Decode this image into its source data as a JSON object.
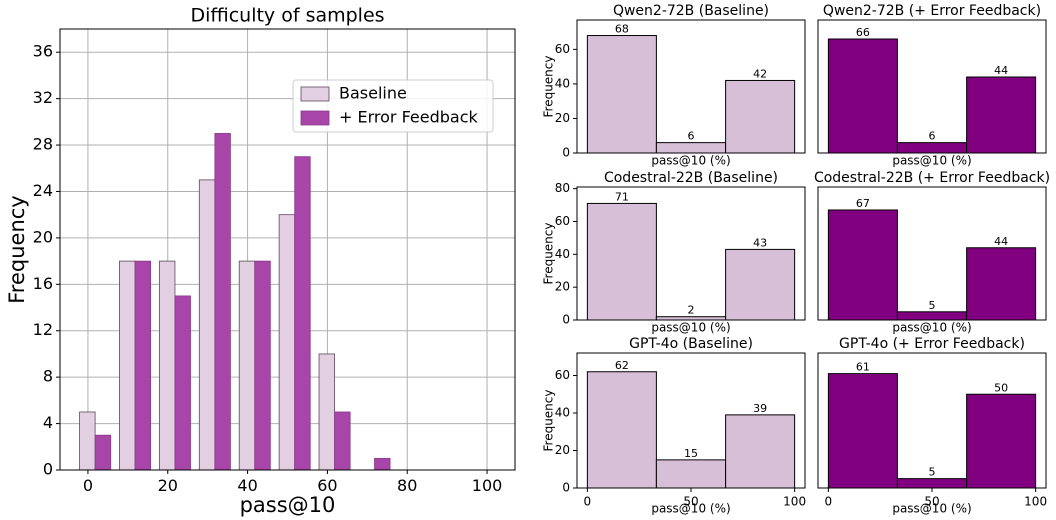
{
  "chart_data": [
    {
      "type": "bar",
      "title": "Difficulty of samples",
      "xlabel": "pass@10",
      "ylabel": "Frequency",
      "x": [
        0,
        10,
        20,
        30,
        40,
        50,
        60,
        70,
        80,
        90,
        100
      ],
      "series": [
        {
          "name": "Baseline",
          "color": "#e2d0e2",
          "values": [
            5,
            18,
            18,
            25,
            18,
            22,
            10,
            0,
            0,
            0,
            0
          ]
        },
        {
          "name": "+ Error Feedback",
          "color": "#a845a8",
          "values": [
            3,
            18,
            15,
            29,
            18,
            27,
            5,
            1,
            0,
            0,
            0
          ]
        }
      ],
      "xlim": [
        -7,
        107
      ],
      "ylim": [
        0,
        38
      ],
      "xticks": [
        0,
        20,
        40,
        60,
        80,
        100
      ],
      "yticks": [
        0,
        4,
        8,
        12,
        16,
        20,
        24,
        28,
        32,
        36
      ],
      "grid": true,
      "legend": "upper right"
    },
    {
      "type": "histogram",
      "title": "Qwen2-72B (Baseline)",
      "xlabel": "pass@10 (%)",
      "ylabel": "Frequency",
      "bins": [
        0,
        33.3,
        66.7,
        100
      ],
      "values": [
        68,
        6,
        42
      ],
      "color": "#d8bfd8",
      "xlim": [
        -5,
        105
      ],
      "ylim": [
        0,
        77
      ],
      "yticks": [
        0,
        20,
        40,
        60
      ]
    },
    {
      "type": "histogram",
      "title": "Qwen2-72B (+ Error Feedback)",
      "xlabel": "pass@10 (%)",
      "bins": [
        0,
        33.3,
        66.7,
        100
      ],
      "values": [
        66,
        6,
        44
      ],
      "color": "#800080",
      "xlim": [
        -5,
        105
      ],
      "ylim": [
        0,
        77
      ]
    },
    {
      "type": "histogram",
      "title": "Codestral-22B (Baseline)",
      "xlabel": "pass@10 (%)",
      "ylabel": "Frequency",
      "bins": [
        0,
        33.3,
        66.7,
        100
      ],
      "values": [
        71,
        2,
        43
      ],
      "color": "#d8bfd8",
      "xlim": [
        -5,
        105
      ],
      "ylim": [
        0,
        81
      ],
      "yticks": [
        0,
        20,
        40,
        60,
        80
      ]
    },
    {
      "type": "histogram",
      "title": "Codestral-22B (+ Error Feedback)",
      "xlabel": "pass@10 (%)",
      "bins": [
        0,
        33.3,
        66.7,
        100
      ],
      "values": [
        67,
        5,
        44
      ],
      "color": "#800080",
      "xlim": [
        -5,
        105
      ],
      "ylim": [
        0,
        81
      ]
    },
    {
      "type": "histogram",
      "title": "GPT-4o (Baseline)",
      "xlabel": "pass@10 (%)",
      "ylabel": "Frequency",
      "bins": [
        0,
        33.3,
        66.7,
        100
      ],
      "values": [
        62,
        15,
        39
      ],
      "color": "#d8bfd8",
      "xlim": [
        -5,
        105
      ],
      "ylim": [
        0,
        72
      ],
      "yticks": [
        0,
        20,
        40,
        60
      ],
      "xticks": [
        0,
        50,
        100
      ]
    },
    {
      "type": "histogram",
      "title": "GPT-4o (+ Error Feedback)",
      "xlabel": "pass@10 (%)",
      "bins": [
        0,
        33.3,
        66.7,
        100
      ],
      "values": [
        61,
        5,
        50
      ],
      "color": "#800080",
      "xlim": [
        -5,
        105
      ],
      "ylim": [
        0,
        72
      ],
      "xticks": [
        0,
        50,
        100
      ]
    }
  ]
}
